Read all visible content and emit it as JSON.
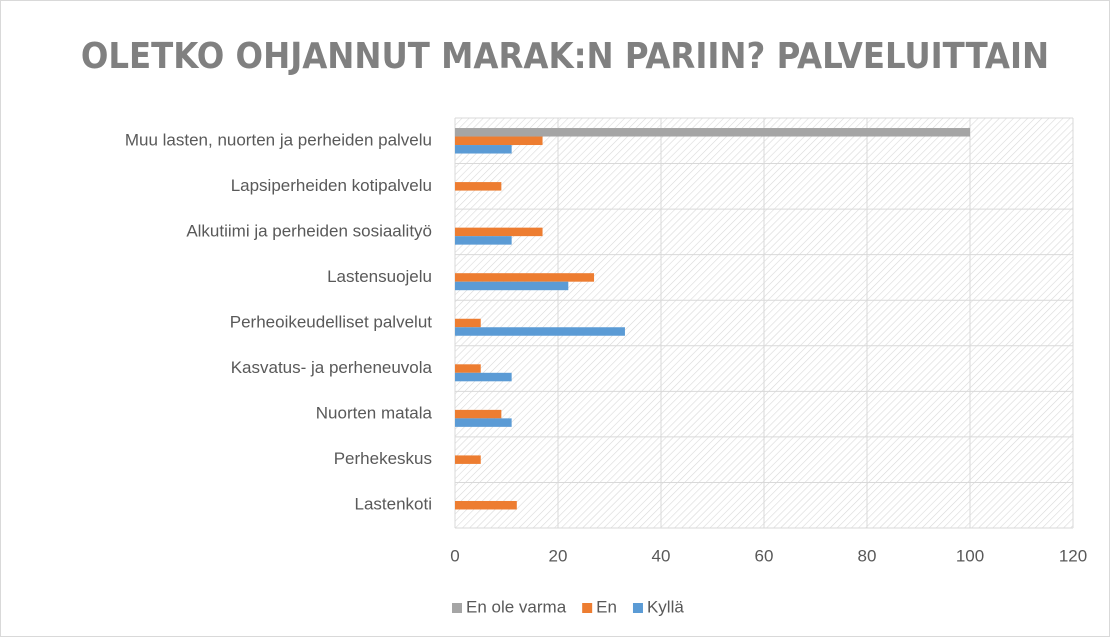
{
  "chart_data": {
    "type": "bar",
    "orientation": "horizontal",
    "title": "OLETKO OHJANNUT MARAK:N PARIIN? PALVELUITTAIN",
    "categories": [
      "Muu lasten, nuorten ja perheiden palvelu",
      "Lapsiperheiden kotipalvelu",
      "Alkutiimi ja perheiden sosiaalityö",
      "Lastensuojelu",
      "Perheoikeudelliset palvelut",
      "Kasvatus- ja perheneuvola",
      "Nuorten matala",
      "Perhekeskus",
      "Lastenkoti"
    ],
    "series": [
      {
        "name": "En ole varma",
        "color": "#a5a5a5",
        "values": [
          100,
          0,
          0,
          0,
          0,
          0,
          0,
          0,
          0
        ]
      },
      {
        "name": "En",
        "color": "#ed7d31",
        "values": [
          17,
          9,
          17,
          27,
          5,
          5,
          9,
          5,
          12
        ]
      },
      {
        "name": "Kyllä",
        "color": "#5b9bd5",
        "values": [
          11,
          0,
          11,
          22,
          33,
          11,
          11,
          0,
          0
        ]
      }
    ],
    "xlim": [
      0,
      120
    ],
    "xticks": [
      0,
      20,
      40,
      60,
      80,
      100,
      120
    ],
    "grid": true,
    "legend": "bottom"
  }
}
